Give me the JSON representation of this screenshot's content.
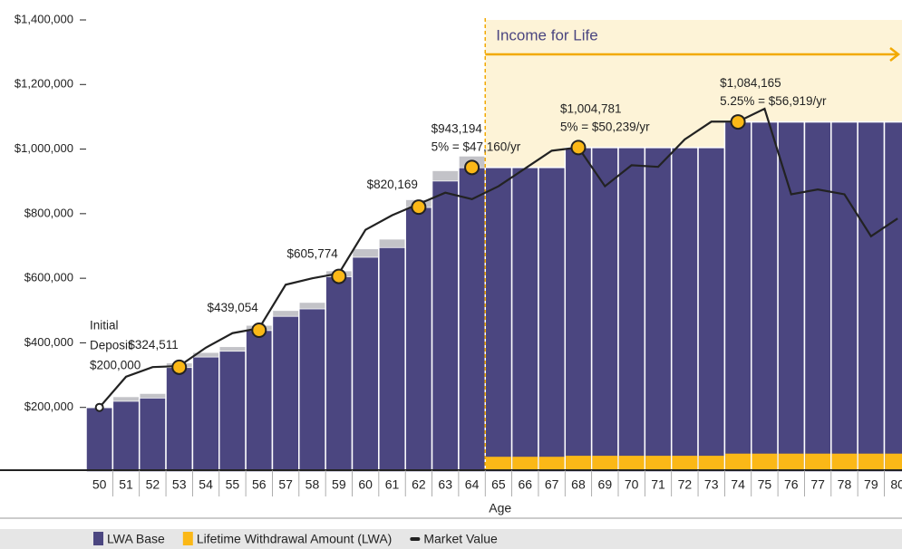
{
  "chart_data": {
    "type": "bar",
    "header": "Income for Life",
    "income_start": "65",
    "x_label": "Age",
    "categories": [
      "50",
      "51",
      "52",
      "53",
      "54",
      "55",
      "56",
      "57",
      "58",
      "59",
      "60",
      "61",
      "62",
      "63",
      "64",
      "65",
      "66",
      "67",
      "68",
      "69",
      "70",
      "71",
      "72",
      "73",
      "74",
      "75",
      "76",
      "77",
      "78",
      "79",
      "80"
    ],
    "ylim": [
      0,
      1400000
    ],
    "yticks": [
      {
        "value": 200000,
        "label": "$200,000"
      },
      {
        "value": 400000,
        "label": "$400,000"
      },
      {
        "value": 600000,
        "label": "$600,000"
      },
      {
        "value": 800000,
        "label": "$800,000"
      },
      {
        "value": 1000000,
        "label": "$1,000,000"
      },
      {
        "value": 1200000,
        "label": "$1,200,000"
      },
      {
        "value": 1400000,
        "label": "$1,400,000"
      }
    ],
    "series": [
      {
        "name": "LWA Base",
        "color": "#4b4680",
        "kind": "bar",
        "values": [
          200000,
          220000,
          230000,
          324511,
          357000,
          375000,
          439054,
          483000,
          506000,
          605774,
          666000,
          696000,
          820169,
          902000,
          943194,
          943194,
          943194,
          943194,
          1004781,
          1004781,
          1004781,
          1004781,
          1004781,
          1004781,
          1084165,
          1084165,
          1084165,
          1084165,
          1084165,
          1084165,
          1084165
        ],
        "value_labels": [
          "$200,000",
          null,
          null,
          "$324,511",
          null,
          null,
          "$439,054",
          null,
          null,
          "$605,774",
          null,
          null,
          "$820,169",
          null,
          "$943,194",
          null,
          null,
          null,
          "$1,004,781",
          null,
          null,
          null,
          null,
          null,
          "$1,084,165",
          null,
          null,
          null,
          null,
          null,
          null
        ]
      },
      {
        "color": "#c3c3c8",
        "kind": "stack",
        "values": [
          0,
          12000,
          12000,
          12000,
          12000,
          12000,
          14000,
          16000,
          18000,
          16000,
          24000,
          24000,
          22000,
          30000,
          34000,
          0,
          0,
          0,
          0,
          0,
          0,
          0,
          0,
          0,
          0,
          0,
          0,
          0,
          0,
          0,
          0
        ]
      },
      {
        "name": "Lifetime Withdrawal Amount (LWA)",
        "color": "#fbb817",
        "kind": "overlay",
        "values": [
          null,
          null,
          null,
          null,
          null,
          null,
          null,
          null,
          null,
          null,
          null,
          null,
          null,
          null,
          null,
          47160,
          47160,
          47160,
          50239,
          50239,
          50239,
          50239,
          50239,
          50239,
          56919,
          56919,
          56919,
          56919,
          56919,
          56919,
          56919
        ]
      },
      {
        "name": "Market Value",
        "color": "#222222",
        "kind": "line",
        "values": [
          200000,
          295000,
          325000,
          328000,
          385000,
          430000,
          445000,
          580000,
          600000,
          615000,
          750000,
          795000,
          830000,
          865000,
          845000,
          885000,
          940000,
          995000,
          1005000,
          885000,
          950000,
          945000,
          1030000,
          1085000,
          1085000,
          1125000,
          860000,
          875000,
          860000,
          730000,
          785000
        ]
      }
    ],
    "annotations": [
      {
        "text": "Initial",
        "category": "50",
        "line": -3
      },
      {
        "text": "Deposit",
        "category": "50",
        "line": -2
      },
      {
        "text": "5% = $47,160/yr",
        "category": "64",
        "line": -1
      },
      {
        "text": "5% = $50,239/yr",
        "category": "68",
        "line": -1
      },
      {
        "text": "5.25% = $56,919/yr",
        "category": "74",
        "line": -1
      }
    ]
  }
}
